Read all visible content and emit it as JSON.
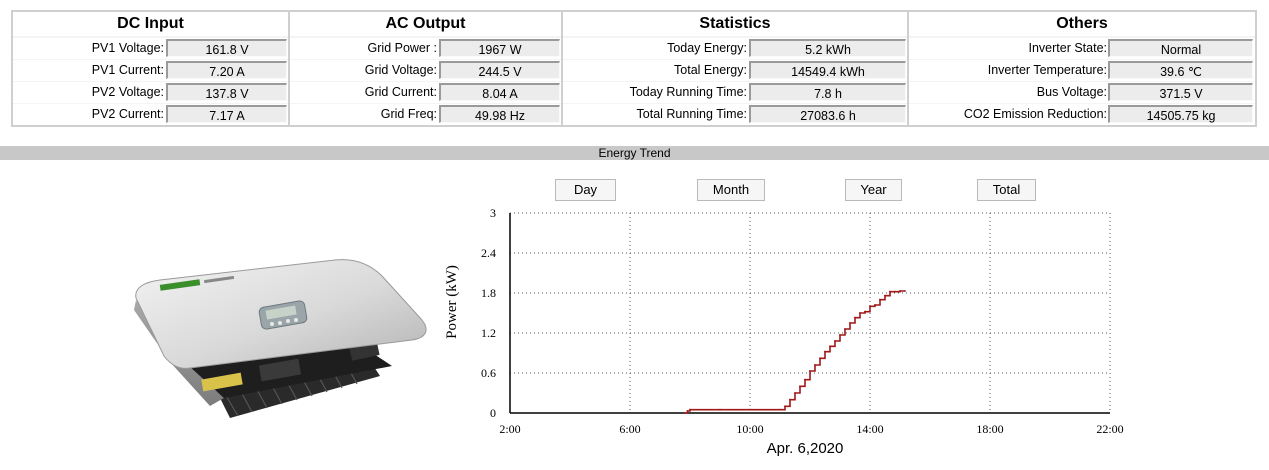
{
  "sections": [
    {
      "title": "DC Input",
      "rows": [
        {
          "label": "PV1 Voltage:",
          "value": "161.8 V"
        },
        {
          "label": "PV1 Current:",
          "value": "7.20 A"
        },
        {
          "label": "PV2 Voltage:",
          "value": "137.8 V"
        },
        {
          "label": "PV2 Current:",
          "value": "7.17 A"
        }
      ]
    },
    {
      "title": "AC Output",
      "rows": [
        {
          "label": "Grid Power :",
          "value": "1967 W"
        },
        {
          "label": "Grid Voltage:",
          "value": "244.5 V"
        },
        {
          "label": "Grid Current:",
          "value": "8.04 A"
        },
        {
          "label": "Grid Freq:",
          "value": "49.98 Hz"
        }
      ]
    },
    {
      "title": "Statistics",
      "rows": [
        {
          "label": "Today Energy:",
          "value": "5.2 kWh"
        },
        {
          "label": "Total Energy:",
          "value": "14549.4 kWh"
        },
        {
          "label": "Today Running Time:",
          "value": "7.8 h"
        },
        {
          "label": "Total Running Time:",
          "value": "27083.6 h"
        }
      ]
    },
    {
      "title": "Others",
      "rows": [
        {
          "label": "Inverter State:",
          "value": "Normal"
        },
        {
          "label": "Inverter Temperature:",
          "value": "39.6 ℃"
        },
        {
          "label": "Bus Voltage:",
          "value": "371.5 V"
        },
        {
          "label": "CO2 Emission Reduction:",
          "value": "14505.75 kg"
        }
      ]
    }
  ],
  "trend_title": "Energy Trend",
  "buttons": {
    "day": "Day",
    "month": "Month",
    "year": "Year",
    "total": "Total"
  },
  "chart_data": {
    "type": "line",
    "xlabel": "Apr. 6,2020",
    "ylabel": "Power (kW)",
    "xlim": [
      "2:00",
      "22:00"
    ],
    "x_ticks": [
      "2:00",
      "6:00",
      "10:00",
      "14:00",
      "18:00",
      "22:00"
    ],
    "ylim": [
      0,
      3
    ],
    "y_ticks": [
      "0",
      "0.6",
      "1.2",
      "1.8",
      "2.4",
      "3"
    ],
    "grid": true,
    "line_color": "#a01818",
    "series": [
      {
        "x": [
          "7:50",
          "7:55",
          "8:00",
          "9:00",
          "10:00",
          "11:00",
          "11:10",
          "11:20",
          "11:30",
          "11:40",
          "11:50",
          "12:00",
          "12:10",
          "12:20",
          "12:30",
          "12:40",
          "12:50",
          "13:00",
          "13:10",
          "13:20",
          "13:30",
          "13:40",
          "13:50",
          "14:00",
          "14:10",
          "14:20",
          "14:30",
          "14:40",
          "14:50",
          "15:00",
          "15:10"
        ],
        "y": [
          0.0,
          0.03,
          0.05,
          0.05,
          0.05,
          0.05,
          0.1,
          0.2,
          0.3,
          0.4,
          0.5,
          0.63,
          0.72,
          0.82,
          0.92,
          1.0,
          1.08,
          1.17,
          1.26,
          1.35,
          1.43,
          1.5,
          1.52,
          1.6,
          1.62,
          1.7,
          1.76,
          1.82,
          1.82,
          1.83,
          1.83
        ]
      }
    ]
  }
}
